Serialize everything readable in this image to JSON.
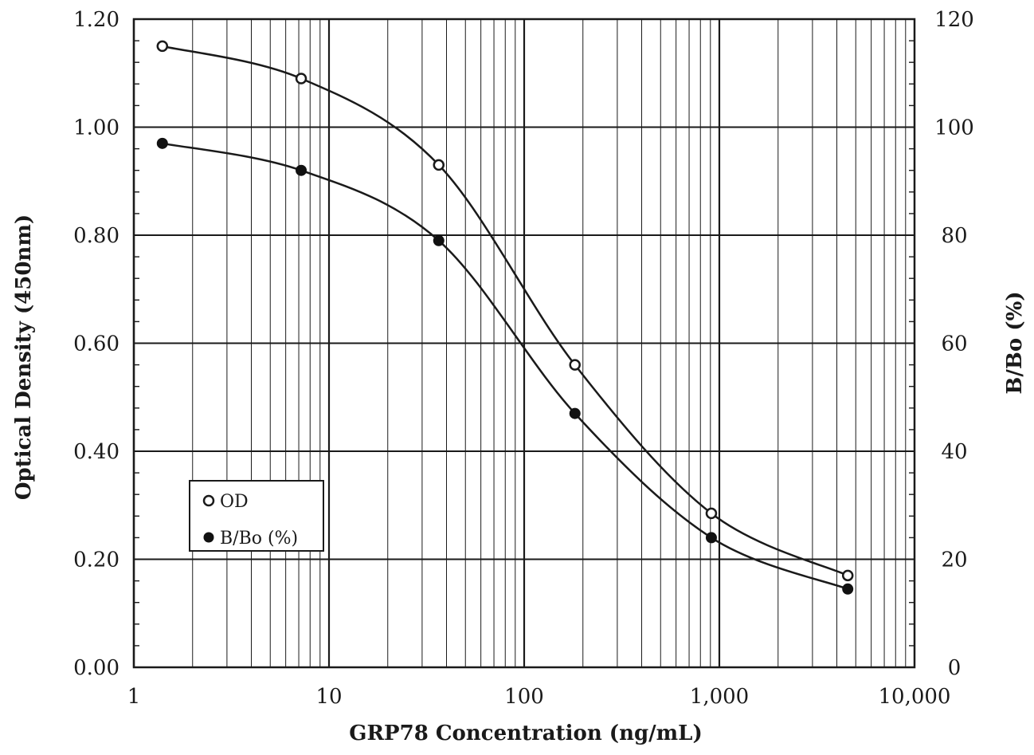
{
  "chart_data": {
    "type": "line",
    "x_scale": "log",
    "xlabel": "GRP78 Concentration  (ng/mL)",
    "ylabel": "Optical Density (450nm)",
    "y2label": "B/Bo (%)",
    "xlim": [
      1,
      10000
    ],
    "ylim": [
      0,
      1.2
    ],
    "y2lim": [
      0,
      120
    ],
    "x_ticks": [
      "1",
      "10",
      "100",
      "1,000",
      "10,000"
    ],
    "y_ticks": [
      "0.00",
      "0.20",
      "0.40",
      "0.60",
      "0.80",
      "1.00",
      "1.20"
    ],
    "y2_ticks": [
      "0",
      "20",
      "40",
      "60",
      "80",
      "100",
      "120"
    ],
    "grid": true,
    "legend_position": "bottom-left",
    "series": [
      {
        "name": "OD",
        "axis": "left",
        "marker": "open-circle",
        "x": [
          1.4,
          7.2,
          36.5,
          182,
          910,
          4550
        ],
        "y": [
          1.15,
          1.09,
          0.93,
          0.56,
          0.285,
          0.17
        ]
      },
      {
        "name": "B/Bo (%)",
        "axis": "right",
        "marker": "filled-circle",
        "x": [
          1.4,
          7.2,
          36.5,
          182,
          910,
          4550
        ],
        "y": [
          97,
          92,
          79,
          47,
          24,
          14.5
        ]
      }
    ]
  }
}
